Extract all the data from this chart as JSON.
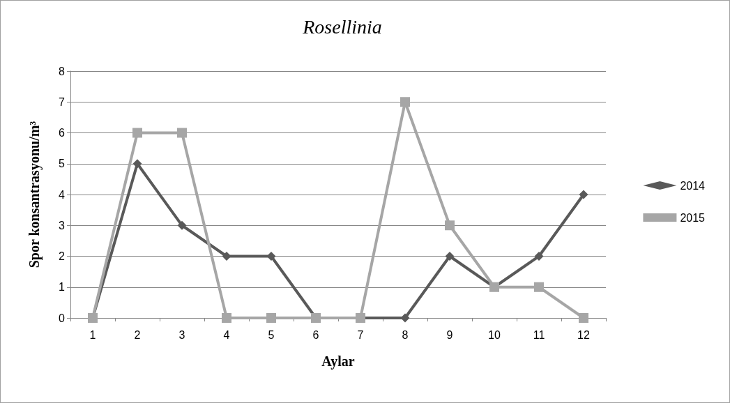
{
  "chart_data": {
    "type": "line",
    "title": "Rosellinia",
    "xlabel": "Aylar",
    "ylabel": "Spor konsantrasyonu/m³",
    "categories": [
      "1",
      "2",
      "3",
      "4",
      "5",
      "6",
      "7",
      "8",
      "9",
      "10",
      "11",
      "12"
    ],
    "series": [
      {
        "name": "2014",
        "color": "#595959",
        "marker": "diamond",
        "values": [
          0,
          5,
          3,
          2,
          2,
          0,
          0,
          0,
          2,
          1,
          2,
          4
        ]
      },
      {
        "name": "2015",
        "color": "#a6a6a6",
        "marker": "square",
        "values": [
          0,
          6,
          6,
          0,
          0,
          0,
          0,
          7,
          3,
          1,
          1,
          0
        ]
      }
    ],
    "ylim": [
      0,
      8
    ],
    "yticks": [
      0,
      1,
      2,
      3,
      4,
      5,
      6,
      7,
      8
    ],
    "grid": "y",
    "legend": "right",
    "line_style": "solid"
  }
}
